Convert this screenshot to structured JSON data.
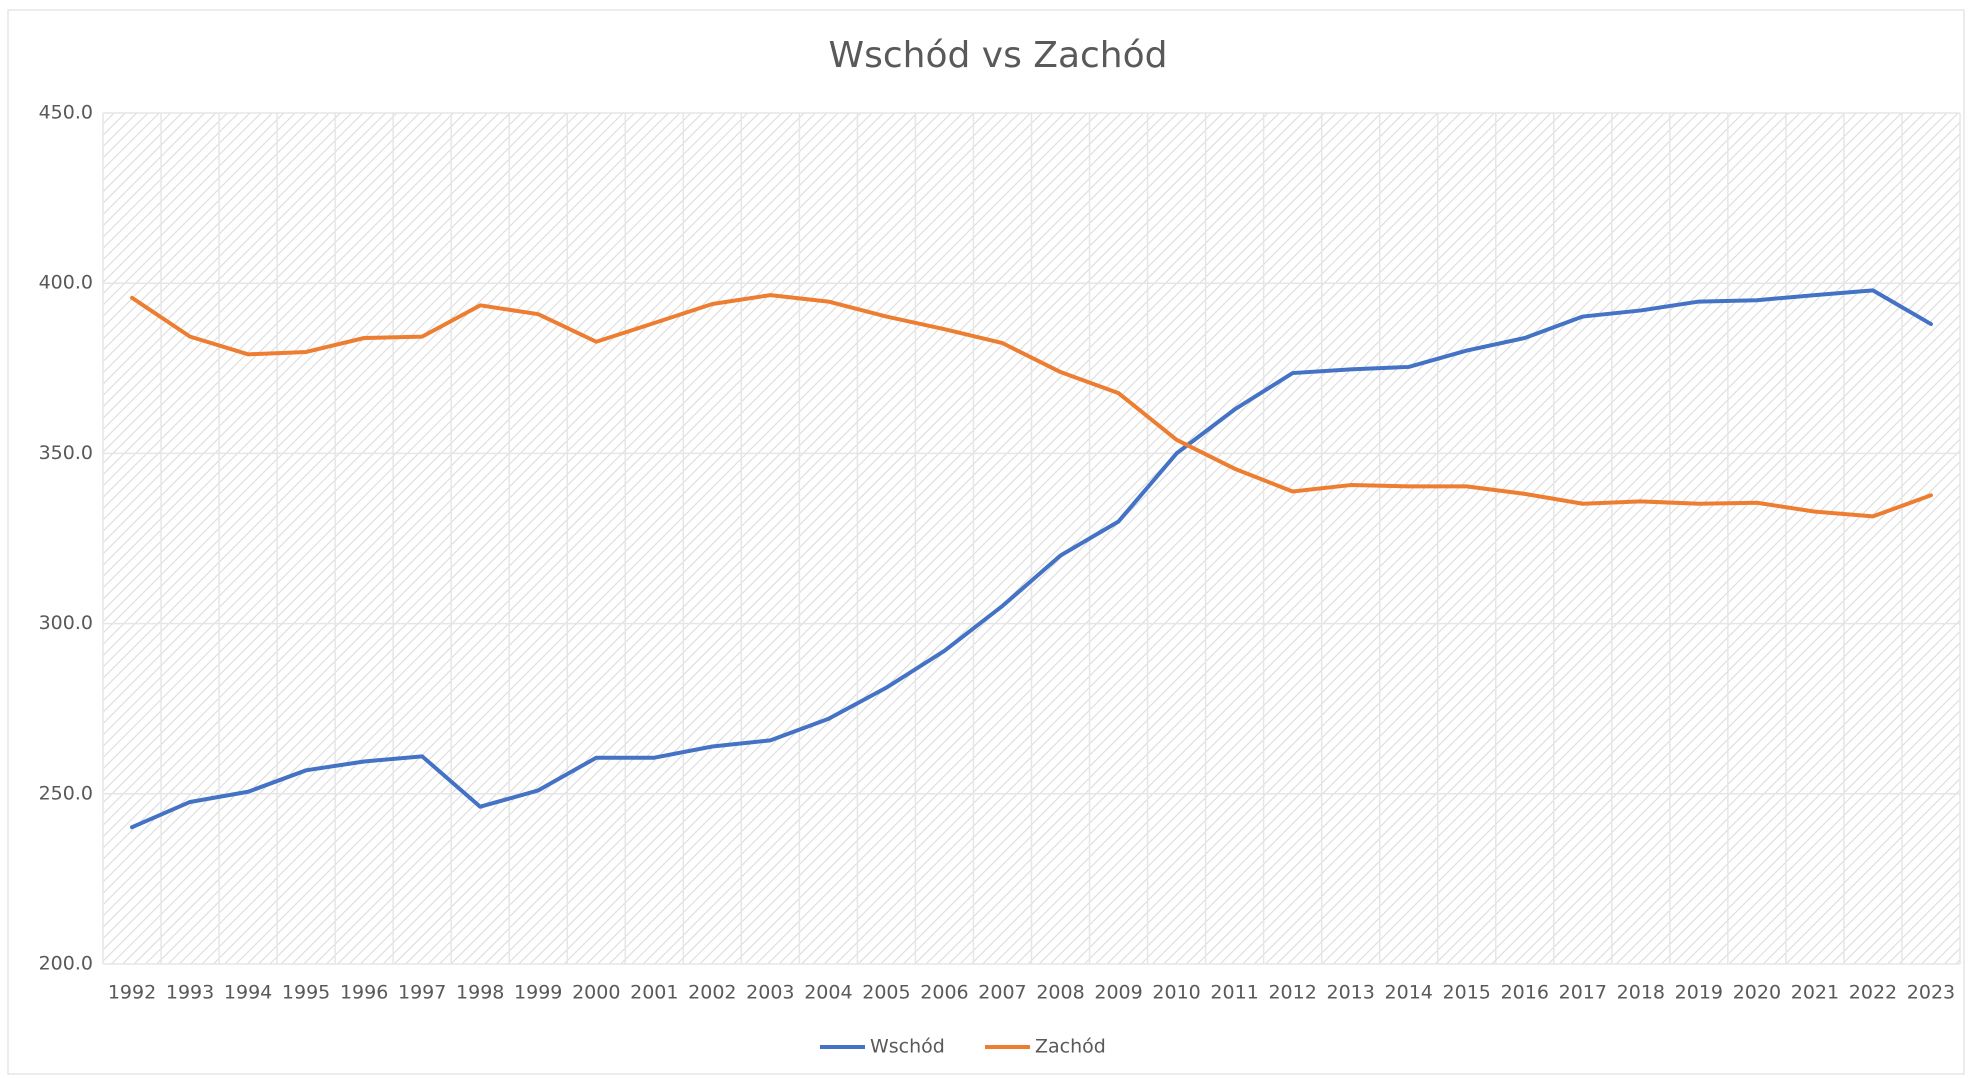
{
  "chart_data": {
    "type": "line",
    "title": "Wschód vs Zachód",
    "categories": [
      "1992",
      "1993",
      "1994",
      "1995",
      "1996",
      "1997",
      "1998",
      "1999",
      "2000",
      "2001",
      "2002",
      "2003",
      "2004",
      "2005",
      "2006",
      "2007",
      "2008",
      "2009",
      "2010",
      "2011",
      "2012",
      "2013",
      "2014",
      "2015",
      "2016",
      "2017",
      "2018",
      "2019",
      "2020",
      "2021",
      "2022",
      "2023"
    ],
    "series": [
      {
        "name": "Wschód",
        "color": "#4472c4",
        "values": [
          240.2,
          247.6,
          250.6,
          256.9,
          259.5,
          261,
          246.2,
          251,
          260.6,
          260.6,
          263.9,
          265.7,
          272,
          281.2,
          292,
          305.2,
          320,
          330,
          350,
          362.9,
          373.6,
          374.7,
          375.4,
          380.2,
          383.9,
          390.2,
          392,
          394.6,
          395,
          396.5,
          397.9,
          388
        ]
      },
      {
        "name": "Zachód",
        "color": "#ed7d31",
        "values": [
          395.7,
          384.3,
          379.1,
          379.8,
          383.9,
          384.3,
          393.5,
          390.9,
          382.8,
          388.3,
          393.9,
          396.5,
          394.6,
          390.2,
          386.5,
          382.4,
          373.9,
          367.7,
          354,
          345.5,
          338.8,
          340.7,
          340.3,
          340.3,
          338.1,
          335.2,
          335.9,
          335.2,
          335.5,
          332.9,
          331.5,
          337.7
        ]
      }
    ],
    "ylim": [
      200,
      450
    ],
    "yticks": [
      {
        "value": 200,
        "label": "200.0"
      },
      {
        "value": 250,
        "label": "250.0"
      },
      {
        "value": 300,
        "label": "300.0"
      },
      {
        "value": 350,
        "label": "350.0"
      },
      {
        "value": 400,
        "label": "400.0"
      },
      {
        "value": 450,
        "label": "450.0"
      }
    ],
    "grid": true,
    "legend": "bottom"
  }
}
